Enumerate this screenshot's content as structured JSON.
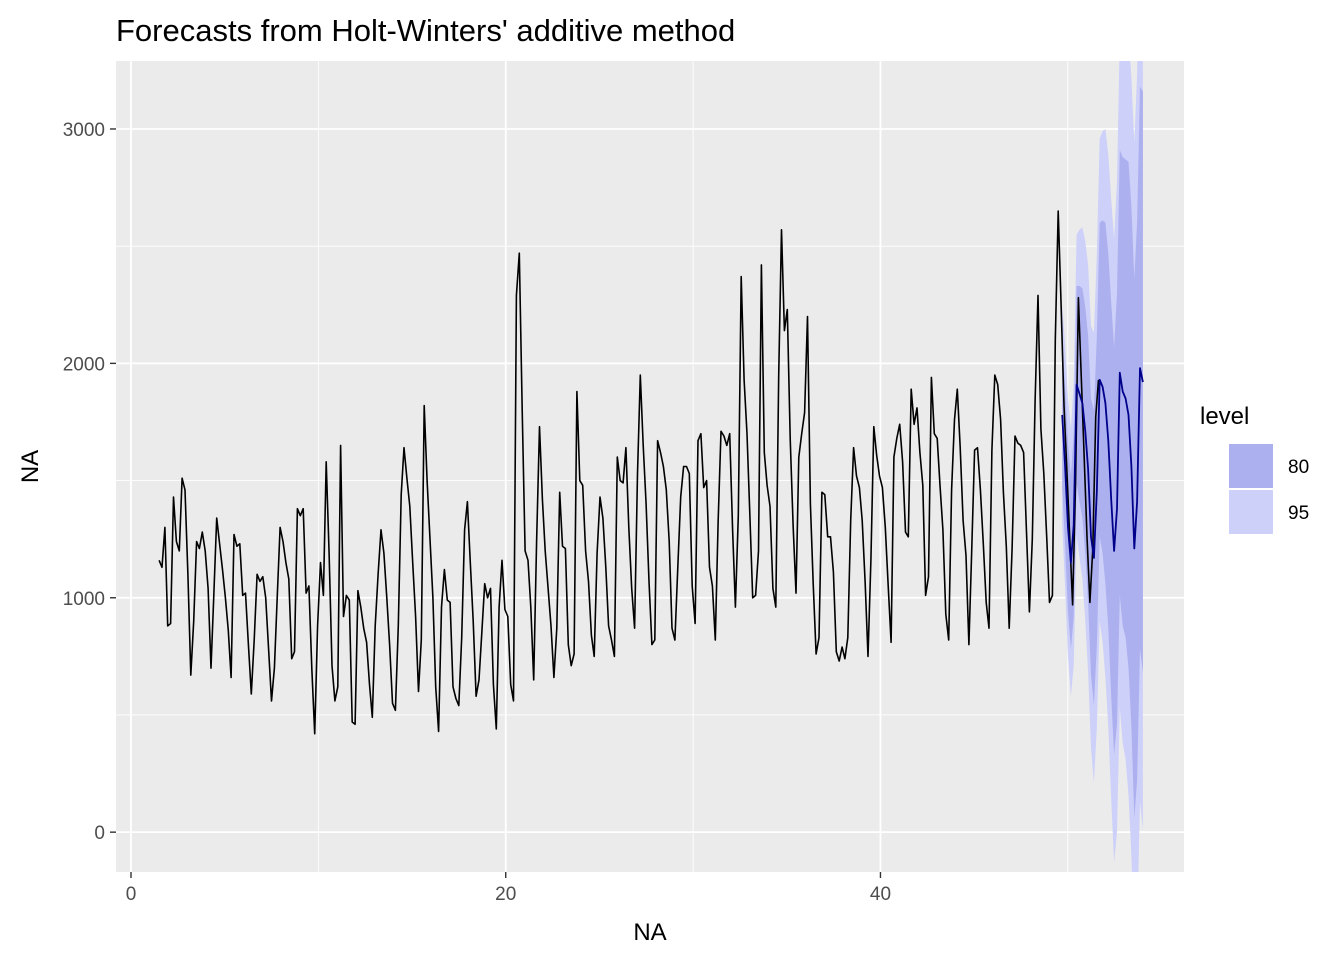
{
  "chart_data": {
    "type": "line",
    "title": "Forecasts from Holt-Winters' additive method",
    "xlabel": "NA",
    "ylabel": "NA",
    "xlim": [
      -0.8,
      56.2
    ],
    "ylim": [
      -170,
      3290
    ],
    "x_ticks": [
      0,
      20,
      40
    ],
    "y_ticks": [
      0,
      1000,
      2000,
      3000
    ],
    "x_minor": [
      10,
      30,
      50
    ],
    "y_minor": [
      500,
      1500,
      2500
    ],
    "grid": true,
    "legend_position": "right",
    "colors": {
      "panel": "#ebebeb",
      "grid": "#ffffff",
      "series": "#000000",
      "forecast": "#00008b",
      "band80": "#adb0ee",
      "band95": "#cdd0f9",
      "tick": "#333333"
    },
    "legend": {
      "title": "level",
      "items": [
        {
          "label": "80",
          "color": "#adb0ee"
        },
        {
          "label": "95",
          "color": "#cdd0f9"
        }
      ]
    },
    "series": [
      {
        "name": "",
        "x_start": 1.5,
        "x_step": 0.1538,
        "values": [
          1160,
          1130,
          1300,
          880,
          890,
          1430,
          1240,
          1200,
          1510,
          1460,
          1100,
          670,
          900,
          1240,
          1210,
          1280,
          1200,
          1040,
          700,
          1010,
          1340,
          1230,
          1120,
          1000,
          860,
          660,
          1270,
          1220,
          1230,
          1010,
          1020,
          800,
          590,
          820,
          1100,
          1070,
          1090,
          1000,
          780,
          560,
          700,
          1000,
          1300,
          1240,
          1150,
          1080,
          740,
          770,
          1380,
          1350,
          1380,
          1020,
          1050,
          700,
          420,
          880,
          1150,
          1010,
          1580,
          1190,
          710,
          560,
          620,
          1650,
          920,
          1010,
          990,
          470,
          460,
          1030,
          960,
          870,
          810,
          630,
          490,
          880,
          1100,
          1290,
          1190,
          1000,
          800,
          550,
          520,
          880,
          1440,
          1640,
          1510,
          1390,
          1150,
          920,
          600,
          820,
          1820,
          1500,
          1250,
          1000,
          620,
          430,
          960,
          1120,
          990,
          980,
          620,
          570,
          540,
          830,
          1290,
          1410,
          1150,
          900,
          580,
          650,
          850,
          1060,
          1000,
          1040,
          630,
          440,
          960,
          1160,
          950,
          920,
          630,
          560,
          2290,
          2470,
          1800,
          1200,
          1160,
          960,
          650,
          1240,
          1730,
          1420,
          1200,
          1040,
          880,
          660,
          870,
          1450,
          1220,
          1210,
          800,
          710,
          760,
          1880,
          1500,
          1480,
          1200,
          1070,
          840,
          750,
          1190,
          1430,
          1340,
          1130,
          880,
          820,
          750,
          1600,
          1500,
          1490,
          1640,
          1300,
          1040,
          870,
          1530,
          1950,
          1650,
          1400,
          1070,
          800,
          820,
          1670,
          1620,
          1560,
          1460,
          1240,
          870,
          820,
          1130,
          1430,
          1560,
          1560,
          1530,
          1050,
          890,
          1670,
          1700,
          1470,
          1500,
          1130,
          1050,
          820,
          1320,
          1710,
          1690,
          1650,
          1700,
          1290,
          960,
          1350,
          2370,
          1930,
          1700,
          1360,
          1000,
          1010,
          1200,
          2420,
          1620,
          1480,
          1390,
          1040,
          960,
          1950,
          2570,
          2140,
          2230,
          1680,
          1310,
          1020,
          1600,
          1700,
          1790,
          2200,
          1400,
          1060,
          760,
          830,
          1450,
          1440,
          1260,
          1260,
          1110,
          770,
          730,
          790,
          740,
          830,
          1330,
          1640,
          1520,
          1470,
          1330,
          1070,
          750,
          1160,
          1730,
          1610,
          1520,
          1470,
          1300,
          1050,
          810,
          1600,
          1680,
          1740,
          1580,
          1280,
          1260,
          1890,
          1740,
          1810,
          1620,
          1480,
          1010,
          1090,
          1940,
          1700,
          1680,
          1480,
          1290,
          930,
          820,
          1460,
          1760,
          1890,
          1640,
          1330,
          1180,
          800,
          1200,
          1630,
          1640,
          1460,
          1230,
          980,
          870,
          1630,
          1950,
          1910,
          1760,
          1450,
          1220,
          870,
          1210,
          1690,
          1660,
          1650,
          1620,
          1280,
          940,
          1250,
          1840,
          2290,
          1720,
          1530,
          1260,
          980,
          1010,
          2100,
          2650,
          2250,
          1820,
          1550,
          1260,
          970,
          1480,
          2280,
          1950,
          1610,
          1260,
          980,
          1210,
          1770,
          1930
        ]
      }
    ],
    "forecast": {
      "x_start": 49.7,
      "x_step": 0.1538,
      "mean": [
        1780,
        1560,
        1300,
        1150,
        1310,
        1910,
        1870,
        1830,
        1710,
        1550,
        1260,
        1170,
        1450,
        1930,
        1900,
        1830,
        1670,
        1420,
        1200,
        1380,
        1960,
        1880,
        1850,
        1780,
        1560,
        1210,
        1410,
        1980,
        1920
      ],
      "lo80": [
        1470,
        1220,
        940,
        780,
        920,
        1490,
        1410,
        1340,
        1180,
        980,
        670,
        540,
        790,
        1260,
        1190,
        1060,
        870,
        580,
        330,
        460,
        1010,
        880,
        830,
        700,
        450,
        60,
        220,
        780,
        680
      ],
      "hi80": [
        2090,
        1900,
        1660,
        1520,
        1700,
        2330,
        2330,
        2320,
        2240,
        2120,
        1850,
        1800,
        2110,
        2600,
        2610,
        2600,
        2470,
        2260,
        2070,
        2300,
        2910,
        2880,
        2870,
        2860,
        2670,
        2360,
        2600,
        3180,
        3160
      ],
      "lo95": [
        1310,
        1040,
        750,
        580,
        710,
        1270,
        1170,
        1080,
        900,
        680,
        360,
        210,
        440,
        900,
        810,
        660,
        450,
        140,
        -130,
        0,
        530,
        380,
        310,
        160,
        -100,
        -520,
        -410,
        130,
        10
      ],
      "hi95": [
        2250,
        2080,
        1850,
        1720,
        1910,
        2550,
        2570,
        2580,
        2520,
        2420,
        2160,
        2130,
        2460,
        2960,
        2990,
        3000,
        2890,
        2700,
        2530,
        2780,
        3390,
        3380,
        3390,
        3400,
        3220,
        2940,
        3230,
        3830,
        3830
      ]
    }
  }
}
